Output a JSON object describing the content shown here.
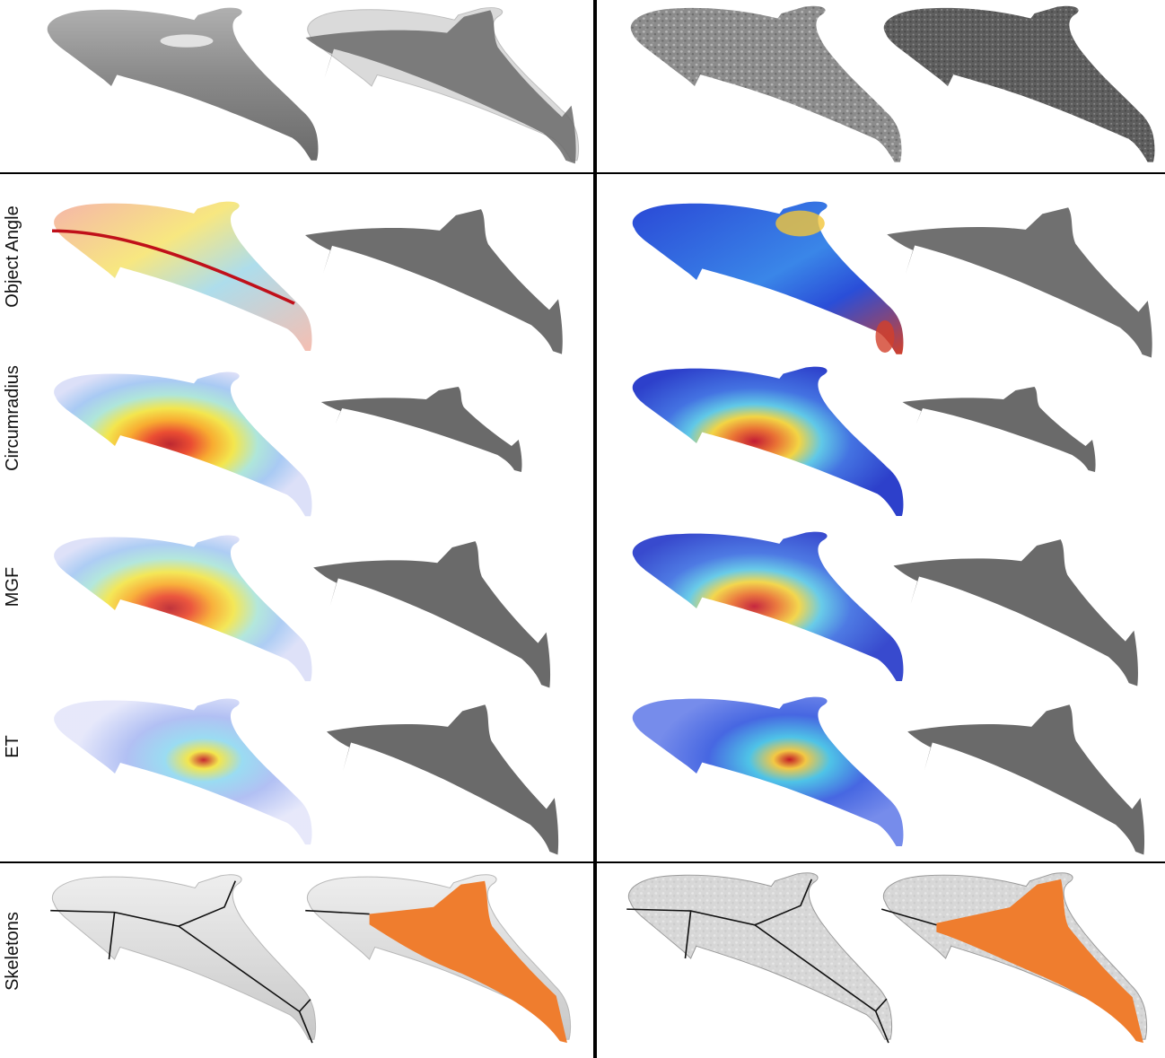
{
  "row_labels": {
    "object_angle": "Object Angle",
    "circumradius": "Circumradius",
    "mgf": "MGF",
    "et": "ET",
    "skeletons": "Skeletons"
  },
  "colors": {
    "mesh_gray": "#8a8a8a",
    "noisy_gray": "#6e6e6e",
    "transparent_mesh": "#d4d4d4",
    "medial_dark": "#6a6a6a",
    "skeleton_surface": "#dcdcdc",
    "skeleton_line": "#111111",
    "skeleton_fill": "#ef7d2e",
    "heat_hot": "#d7191c",
    "heat_warm": "#f2e33a",
    "heat_cool": "#7fc9ef",
    "heat_blue": "#2c3fd4",
    "divider": "#000000"
  },
  "panels": {
    "left_column": "smooth dolphin mesh",
    "right_column": "noisy dolphin mesh"
  }
}
